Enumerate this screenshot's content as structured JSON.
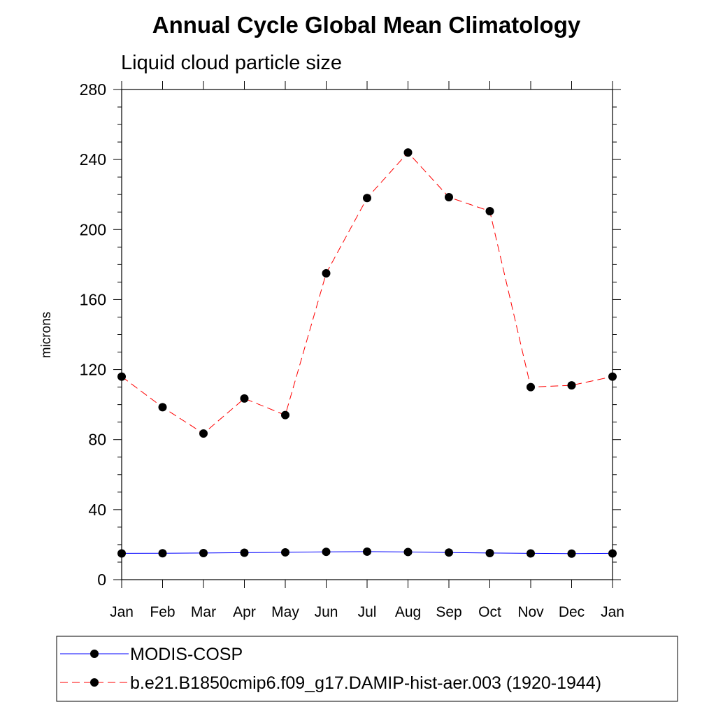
{
  "chart_data": {
    "type": "line",
    "title": "Annual Cycle Global Mean Climatology",
    "subtitle": "Liquid cloud particle size",
    "xlabel": "",
    "ylabel": "microns",
    "categories": [
      "Jan",
      "Feb",
      "Mar",
      "Apr",
      "May",
      "Jun",
      "Jul",
      "Aug",
      "Sep",
      "Oct",
      "Nov",
      "Dec",
      "Jan"
    ],
    "ylim": [
      0,
      280
    ],
    "yticks": [
      0,
      40,
      80,
      120,
      160,
      200,
      240,
      280
    ],
    "yticklabels": [
      "0",
      "40",
      "80",
      "120",
      "160",
      "200",
      "240",
      "280"
    ],
    "grid": false,
    "legend_position": "bottom",
    "series": [
      {
        "name": "MODIS-COSP",
        "color": "#0000ff",
        "line_style": "solid",
        "marker": "circle",
        "values": [
          15.0,
          15.1,
          15.2,
          15.4,
          15.6,
          15.9,
          16.0,
          15.8,
          15.5,
          15.2,
          15.0,
          14.9,
          15.0
        ]
      },
      {
        "name": "b.e21.B1850cmip6.f09_g17.DAMIP-hist-aer.003 (1920-1944)",
        "color": "#ff0000",
        "line_style": "dashed",
        "marker": "circle",
        "values": [
          116,
          98.5,
          83.5,
          103.5,
          94,
          175,
          218,
          244,
          218.5,
          210.5,
          110,
          111,
          116
        ]
      }
    ]
  }
}
